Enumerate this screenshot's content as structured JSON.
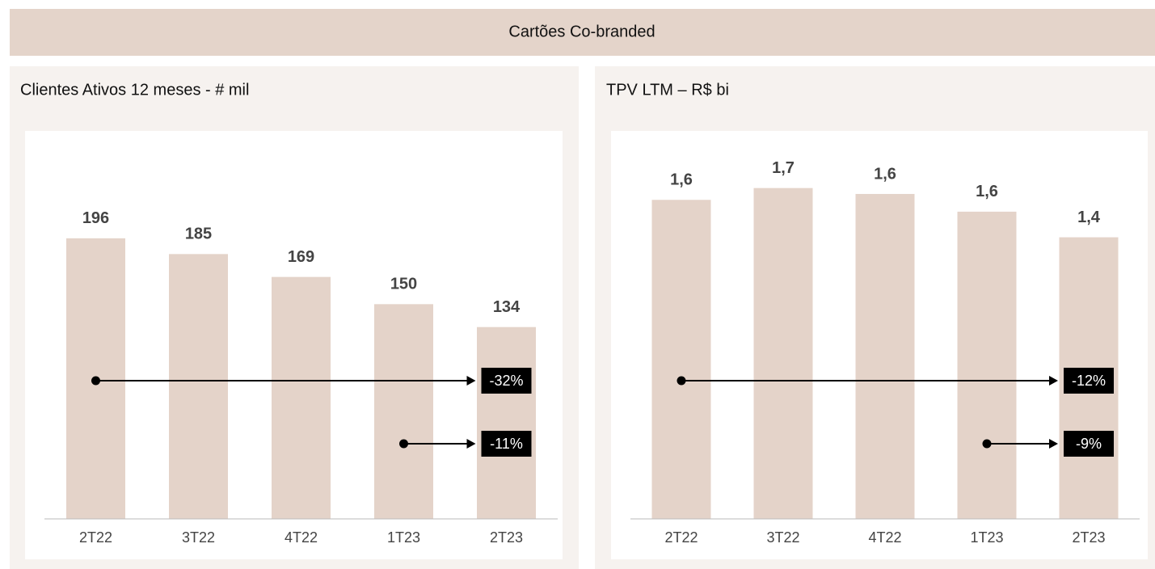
{
  "header": {
    "title": "Cartões Co-branded"
  },
  "chart_data": [
    {
      "type": "bar",
      "title": "Clientes Ativos 12 meses - # mil",
      "categories": [
        "2T22",
        "3T22",
        "4T22",
        "1T23",
        "2T23"
      ],
      "values": [
        196,
        185,
        169,
        150,
        134
      ],
      "color": "#e4d3c9",
      "ylim": [
        0,
        271
      ],
      "annotations": [
        {
          "text": "-32%",
          "from": "2T22",
          "to": "2T23"
        },
        {
          "text": "-11%",
          "from": "1T23",
          "to": "2T23"
        }
      ]
    },
    {
      "type": "bar",
      "title": "TPV LTM – R$ bi",
      "categories": [
        "2T22",
        "3T22",
        "4T22",
        "1T23",
        "2T23"
      ],
      "values": [
        1.62,
        1.68,
        1.65,
        1.56,
        1.43
      ],
      "value_labels": [
        "1,6",
        "1,7",
        "1,6",
        "1,6",
        "1,4"
      ],
      "color": "#e4d3c9",
      "ylim": [
        0,
        1.97
      ],
      "annotations": [
        {
          "text": "-12%",
          "from": "2T22",
          "to": "2T23"
        },
        {
          "text": "-9%",
          "from": "1T23",
          "to": "2T23"
        }
      ]
    }
  ]
}
